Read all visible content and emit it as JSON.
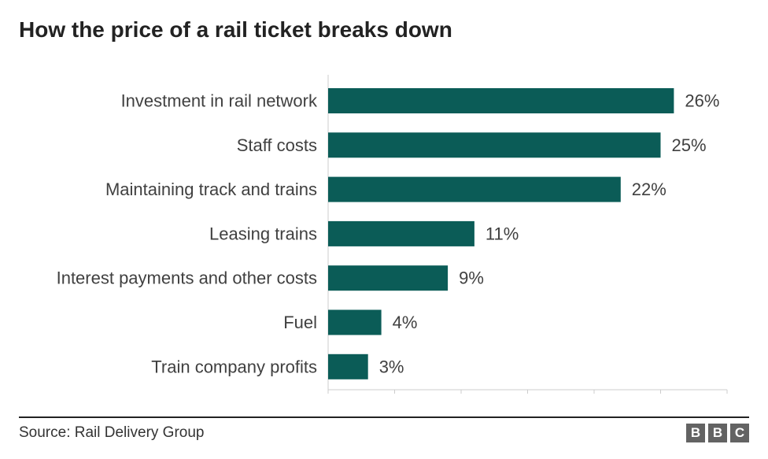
{
  "title": "How the price of a rail ticket breaks down",
  "source": "Source: Rail Delivery Group",
  "logo_letters": [
    "B",
    "B",
    "C"
  ],
  "colors": {
    "bar": "#0b5c57",
    "label": "#404040",
    "grid": "#dddddd",
    "axis": "#cccccc",
    "rule": "#222222"
  },
  "chart_data": {
    "type": "bar",
    "orientation": "horizontal",
    "categories": [
      "Investment in rail network",
      "Staff costs",
      "Maintaining track and trains",
      "Leasing trains",
      "Interest payments and other costs",
      "Fuel",
      "Train company profits"
    ],
    "values": [
      26,
      25,
      22,
      11,
      9,
      4,
      3
    ],
    "value_labels": [
      "26%",
      "25%",
      "22%",
      "11%",
      "9%",
      "4%",
      "3%"
    ],
    "unit": "%",
    "xlim": [
      0,
      30
    ],
    "x_ticks": [
      0,
      5,
      10,
      15,
      20,
      25,
      30
    ],
    "grid": false
  }
}
